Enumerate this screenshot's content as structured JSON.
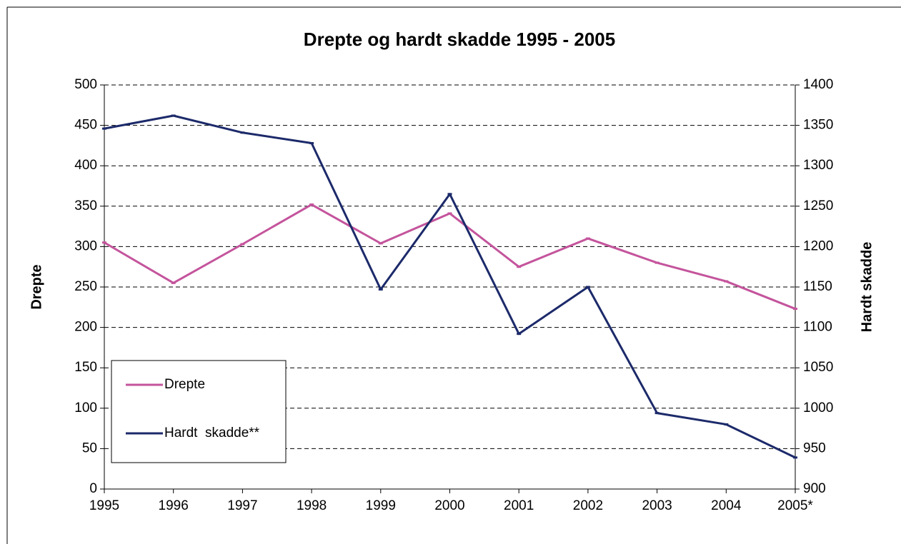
{
  "chart_data": {
    "type": "line",
    "title": "Drepte og hardt skadde 1995 - 2005",
    "y_label": "Drepte",
    "y2_label": "Hardt skadde",
    "categories": [
      "1995",
      "1996",
      "1997",
      "1998",
      "1999",
      "2000",
      "2001",
      "2002",
      "2003",
      "2004",
      "2005*"
    ],
    "series": [
      {
        "name": "Drepte",
        "color": "#c4549c",
        "values": [
          305,
          255,
          303,
          352,
          304,
          341,
          275,
          310,
          280,
          257,
          223
        ]
      },
      {
        "name": "Hardt  skadde**",
        "color": "#1c2a6a",
        "axis": "y2",
        "values": [
          1346,
          1362,
          1341,
          1328,
          1147,
          1265,
          1092,
          1150,
          994,
          980,
          939
        ]
      }
    ],
    "ylim": [
      0,
      500
    ],
    "yticks": [
      0,
      50,
      100,
      150,
      200,
      250,
      300,
      350,
      400,
      450,
      500
    ],
    "y2lim": [
      900,
      1400
    ],
    "y2ticks": [
      900,
      950,
      1000,
      1050,
      1100,
      1150,
      1200,
      1250,
      1300,
      1350,
      1400
    ],
    "grid": true,
    "legend": "lower left"
  }
}
